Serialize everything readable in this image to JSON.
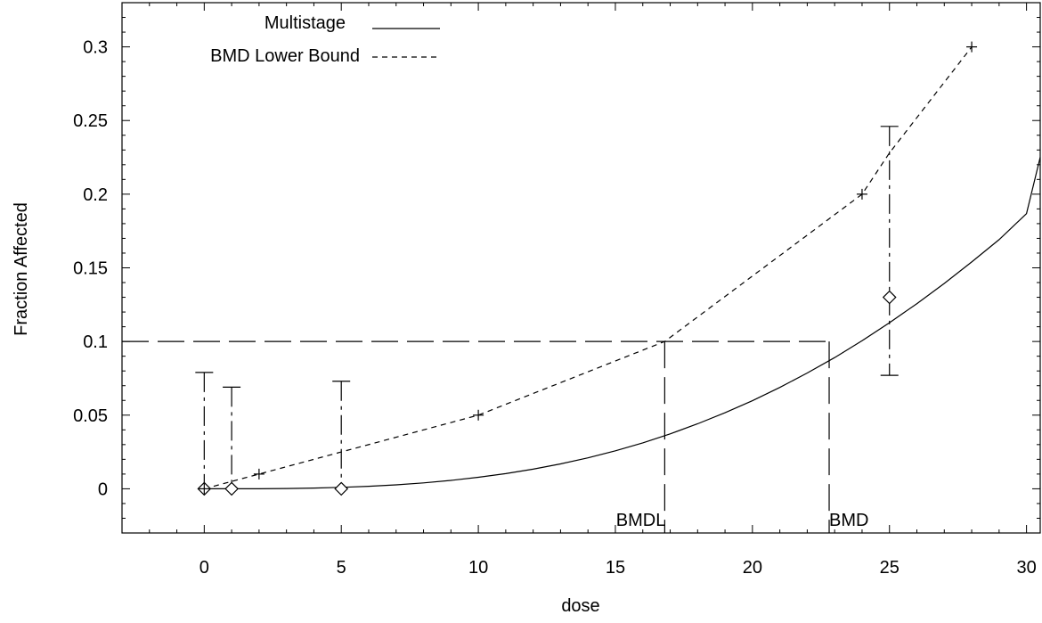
{
  "chart_data": {
    "type": "scatter",
    "xlabel": "dose",
    "ylabel": "Fraction Affected",
    "xlim": [
      -3,
      30.5
    ],
    "ylim": [
      -0.03,
      0.33
    ],
    "xticks": [
      0,
      5,
      10,
      15,
      20,
      25,
      30
    ],
    "yticks": [
      0,
      0.05,
      0.1,
      0.15,
      0.2,
      0.25,
      0.3
    ],
    "ytick_labels": [
      "0",
      "0.05",
      "0.1",
      "0.15",
      "0.2",
      "0.25",
      "0.3"
    ],
    "grid": false,
    "legend_position": "top-left",
    "series": [
      {
        "name": "Multistage",
        "style": "solid",
        "x": [
          0,
          1,
          2,
          3,
          4,
          5,
          6,
          7,
          8,
          9,
          10,
          11,
          12,
          13,
          14,
          15,
          16,
          17,
          18,
          19,
          20,
          21,
          22,
          23,
          24,
          25,
          26,
          27,
          28,
          29,
          30,
          30.5
        ],
        "y": [
          0,
          0,
          0,
          0.0002,
          0.0005,
          0.001,
          0.0017,
          0.0027,
          0.004,
          0.0057,
          0.0078,
          0.0103,
          0.0133,
          0.0169,
          0.021,
          0.0258,
          0.0312,
          0.0373,
          0.0441,
          0.0516,
          0.0598,
          0.0688,
          0.0786,
          0.0891,
          0.1005,
          0.1127,
          0.1257,
          0.1394,
          0.154,
          0.1691,
          0.1868,
          0.2251
        ]
      },
      {
        "name": "BMD Lower Bound",
        "style": "dashed",
        "x": [
          0,
          2,
          5,
          10,
          16.8,
          24,
          25,
          28
        ],
        "y": [
          0,
          0.01,
          0.025,
          0.05,
          0.1,
          0.2,
          0.228,
          0.3
        ]
      }
    ],
    "observed_points": {
      "x": [
        0,
        1,
        5,
        25
      ],
      "y": [
        0,
        0,
        0,
        0.13
      ],
      "error_upper": [
        0.079,
        0.069,
        0.073,
        0.246
      ],
      "error_lower": [
        0,
        0,
        0,
        0.077
      ]
    },
    "plus_markers": {
      "x": [
        0,
        2,
        10,
        24,
        28
      ],
      "y": [
        0,
        0.01,
        0.05,
        0.2,
        0.3
      ]
    },
    "bmr_level": 0.1,
    "bmdl": 16.8,
    "bmd": 22.8,
    "annotations": [
      {
        "text": "BMDL",
        "x": 16.8
      },
      {
        "text": "BMD",
        "x": 22.8
      }
    ]
  }
}
